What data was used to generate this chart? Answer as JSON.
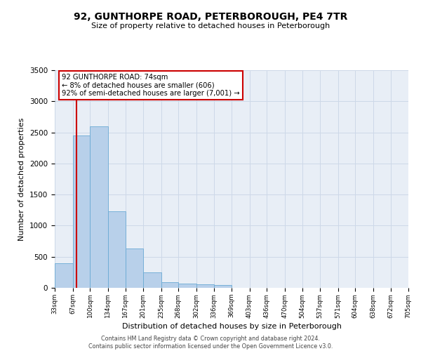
{
  "title": "92, GUNTHORPE ROAD, PETERBOROUGH, PE4 7TR",
  "subtitle": "Size of property relative to detached houses in Peterborough",
  "xlabel": "Distribution of detached houses by size in Peterborough",
  "ylabel": "Number of detached properties",
  "footer_line1": "Contains HM Land Registry data © Crown copyright and database right 2024.",
  "footer_line2": "Contains public sector information licensed under the Open Government Licence v3.0.",
  "bin_edges": [
    33,
    67,
    100,
    134,
    167,
    201,
    235,
    268,
    302,
    336,
    369,
    403,
    436,
    470,
    504,
    537,
    571,
    604,
    638,
    672,
    705
  ],
  "bar_values": [
    390,
    2450,
    2600,
    1230,
    630,
    250,
    90,
    65,
    55,
    50,
    0,
    0,
    0,
    0,
    0,
    0,
    0,
    0,
    0,
    0
  ],
  "bar_color": "#b8d0ea",
  "bar_edge_color": "#6aaad4",
  "grid_color": "#cdd8e8",
  "background_color": "#e8eef6",
  "vline_color": "#cc0000",
  "vline_x": 74,
  "annotation_text": "92 GUNTHORPE ROAD: 74sqm\n← 8% of detached houses are smaller (606)\n92% of semi-detached houses are larger (7,001) →",
  "annotation_box_facecolor": "white",
  "annotation_box_edgecolor": "#cc0000",
  "ylim": [
    0,
    3500
  ],
  "yticks": [
    0,
    500,
    1000,
    1500,
    2000,
    2500,
    3000,
    3500
  ]
}
